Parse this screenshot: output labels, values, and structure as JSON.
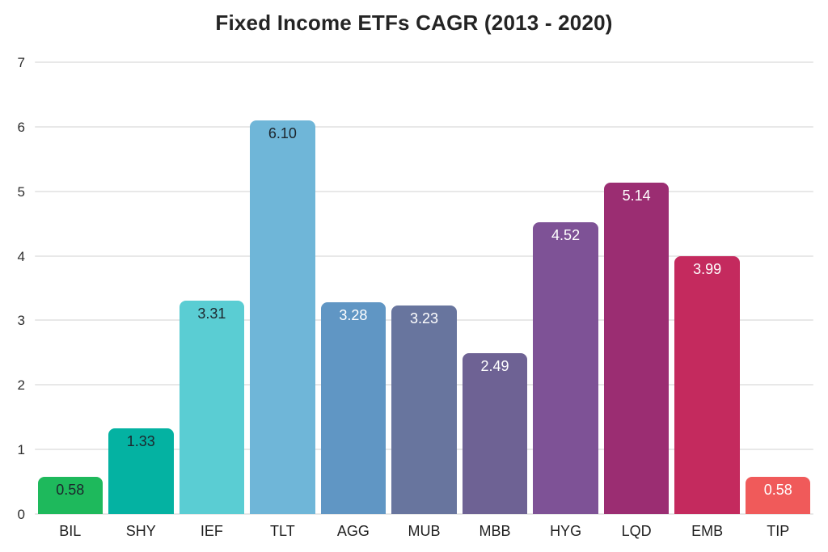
{
  "chart_data": {
    "type": "bar",
    "title": "Fixed Income ETFs CAGR (2013 - 2020)",
    "categories": [
      "BIL",
      "SHY",
      "IEF",
      "TLT",
      "AGG",
      "MUB",
      "MBB",
      "HYG",
      "LQD",
      "EMB",
      "TIP"
    ],
    "values": [
      0.58,
      1.33,
      3.31,
      6.1,
      3.28,
      3.23,
      2.49,
      4.52,
      5.14,
      3.99,
      0.58
    ],
    "value_labels": [
      "0.58",
      "1.33",
      "3.31",
      "6.10",
      "3.28",
      "3.23",
      "2.49",
      "4.52",
      "5.14",
      "3.99",
      "0.58"
    ],
    "bar_colors": [
      "#1eb95c",
      "#04b2a2",
      "#5acdd3",
      "#6fb6d8",
      "#6096c4",
      "#68759e",
      "#6e6294",
      "#7e5296",
      "#9b2d72",
      "#c42a5e",
      "#f05a5a"
    ],
    "value_label_colors": [
      "#1d262d",
      "#1d262d",
      "#1d262d",
      "#1d262d",
      "#ffffff",
      "#ffffff",
      "#ffffff",
      "#ffffff",
      "#ffffff",
      "#ffffff",
      "#ffffff"
    ],
    "xlabel": "",
    "ylabel": "",
    "ylim": [
      0,
      7
    ],
    "yticks": [
      "0",
      "1",
      "2",
      "3",
      "4",
      "5",
      "6",
      "7"
    ],
    "grid": true,
    "gridline_color": "#e8e8e8",
    "legend": "none",
    "background_color": "#ffffff"
  }
}
